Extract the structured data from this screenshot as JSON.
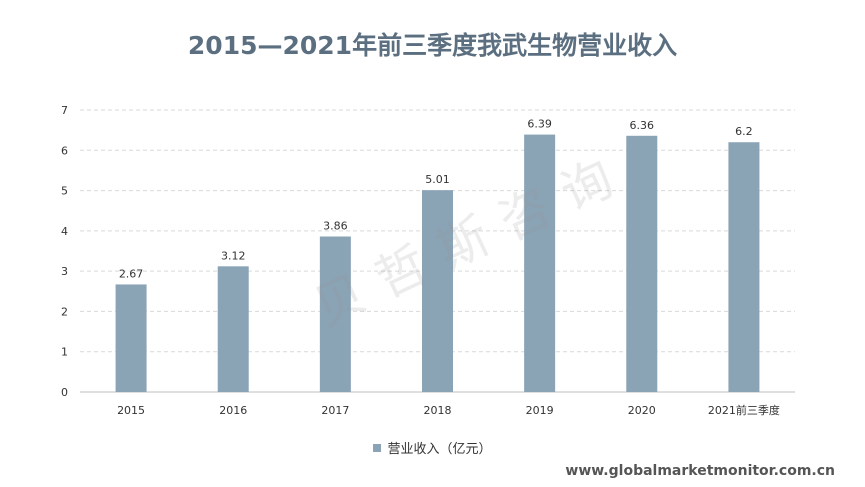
{
  "watermark": "贝哲斯咨询",
  "source": "www.globalmarketmonitor.com.cn",
  "chart_data": {
    "type": "bar",
    "title": "2015—2021年前三季度我武生物营业收入",
    "categories": [
      "2015",
      "2016",
      "2017",
      "2018",
      "2019",
      "2020",
      "2021前三季度"
    ],
    "series": [
      {
        "name": "营业收入（亿元）",
        "values": [
          2.67,
          3.12,
          3.86,
          5.01,
          6.39,
          6.36,
          6.2
        ]
      }
    ],
    "data_labels": [
      "2.67",
      "3.12",
      "3.86",
      "5.01",
      "6.39",
      "6.36",
      "6.2"
    ],
    "ylim": [
      0,
      7
    ],
    "yticks": [
      0,
      1,
      2,
      3,
      4,
      5,
      6,
      7
    ],
    "grid": true,
    "legend_position": "bottom",
    "bar_color": "#8aa3b5"
  }
}
